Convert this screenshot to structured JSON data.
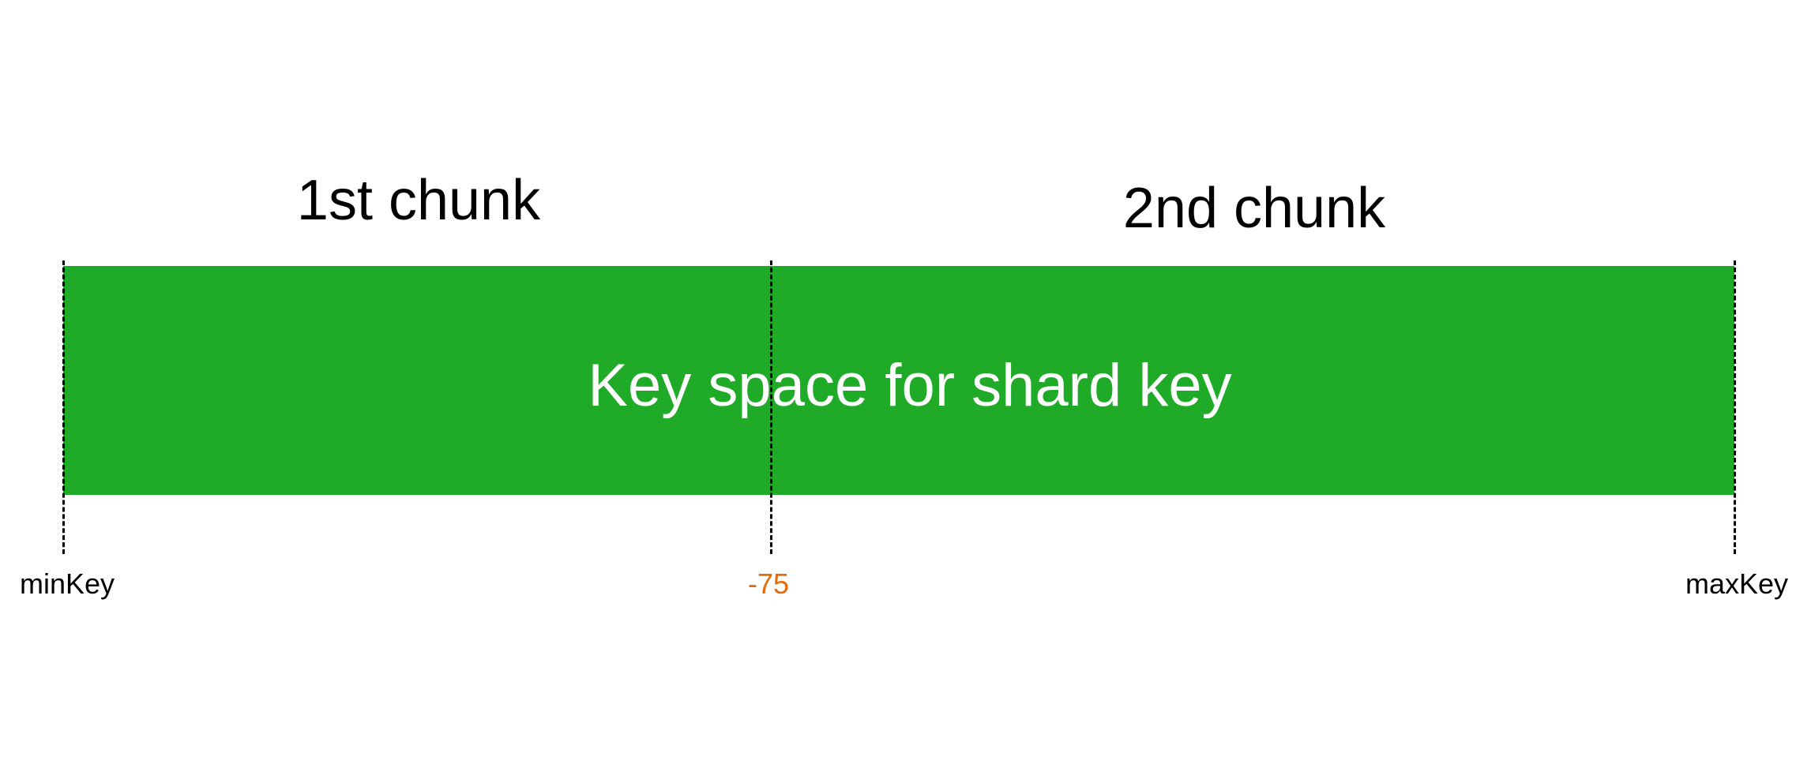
{
  "chunks": [
    {
      "label": "1st chunk"
    },
    {
      "label": "2nd chunk"
    }
  ],
  "bar": {
    "title": "Key space for shard key",
    "color": "#1faa27",
    "title_color": "#ffffff"
  },
  "boundaries": {
    "min": {
      "label": "minKey",
      "color": "#000000"
    },
    "split": {
      "label": "-75",
      "color": "#e26b0a"
    },
    "max": {
      "label": "maxKey",
      "color": "#000000"
    }
  }
}
